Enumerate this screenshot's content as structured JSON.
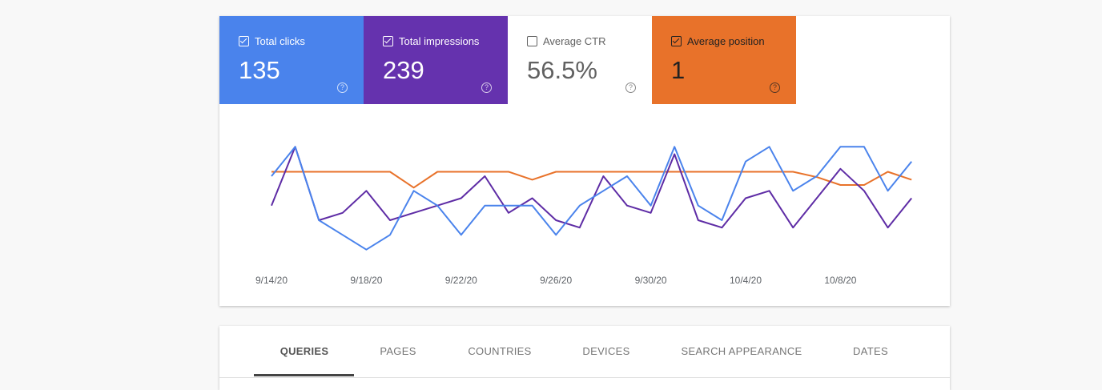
{
  "metrics": [
    {
      "label": "Total clicks",
      "value": "135",
      "checked": true,
      "color": "#4a83ec",
      "text_color": "#ffffff"
    },
    {
      "label": "Total impressions",
      "value": "239",
      "checked": true,
      "color": "#6532ae",
      "text_color": "#ffffff"
    },
    {
      "label": "Average CTR",
      "value": "56.5%",
      "checked": false,
      "color": "#ffffff",
      "text_color": "#616161"
    },
    {
      "label": "Average position",
      "value": "1",
      "checked": true,
      "color": "#e8722a",
      "text_color": "#222222"
    }
  ],
  "chart_data": {
    "type": "line",
    "categories": [
      "9/14/20",
      null,
      null,
      null,
      "9/18/20",
      null,
      null,
      null,
      "9/22/20",
      null,
      null,
      null,
      "9/26/20",
      null,
      null,
      null,
      "9/30/20",
      null,
      null,
      null,
      "10/4/20",
      null,
      null,
      null,
      "10/8/20",
      null,
      null,
      null
    ],
    "series": [
      {
        "name": "Total clicks",
        "color": "#4a83ec",
        "ylim": [
          0,
          9
        ],
        "values": [
          6,
          8,
          3,
          2,
          1,
          2,
          5,
          4,
          2,
          4,
          4,
          4,
          2,
          4,
          5,
          6,
          4,
          8,
          4,
          3,
          7,
          8,
          5,
          6,
          8,
          8,
          5,
          7
        ]
      },
      {
        "name": "Total impressions",
        "color": "#5e2ca5",
        "ylim": [
          0,
          18
        ],
        "values": [
          8,
          16,
          6,
          7,
          10,
          6,
          7,
          8,
          9,
          12,
          7,
          9,
          6,
          5,
          12,
          8,
          7,
          15,
          6,
          5,
          9,
          10,
          5,
          9,
          13,
          10,
          5,
          9
        ]
      },
      {
        "name": "Average position",
        "color": "#e8722a",
        "ylim": [
          -0.5,
          4.5
        ],
        "inverted": true,
        "values": [
          1,
          1,
          1,
          1,
          1,
          1,
          1.6,
          1,
          1,
          1,
          1,
          1.3,
          1,
          1,
          1,
          1,
          1,
          1,
          1,
          1,
          1,
          1,
          1,
          1.2,
          1.5,
          1.5,
          1,
          1.3
        ]
      }
    ]
  },
  "tabs": [
    "QUERIES",
    "PAGES",
    "COUNTRIES",
    "DEVICES",
    "SEARCH APPEARANCE",
    "DATES"
  ],
  "active_tab": 0
}
